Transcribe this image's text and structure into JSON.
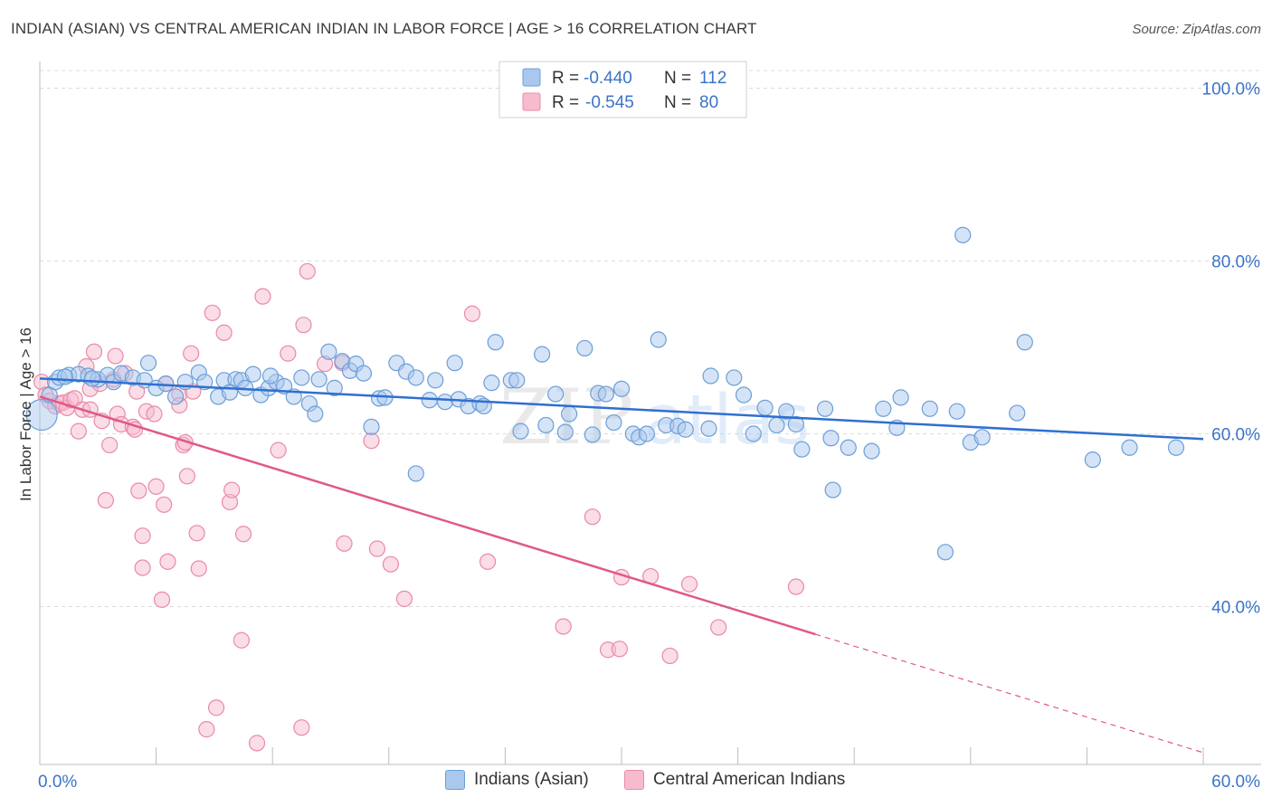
{
  "header": {
    "title": "INDIAN (ASIAN) VS CENTRAL AMERICAN INDIAN IN LABOR FORCE | AGE > 16 CORRELATION CHART",
    "source": "Source: ZipAtlas.com"
  },
  "watermark": {
    "zip": "ZIP",
    "atlas": "atlas"
  },
  "legend_top": [
    {
      "r_label": "R =",
      "r_value": "-0.440",
      "n_label": "N =",
      "n_value": "112"
    },
    {
      "r_label": "R =",
      "r_value": "-0.545",
      "n_label": "N =",
      "n_value": "80"
    }
  ],
  "legend_bottom": [
    {
      "label": "Indians (Asian)"
    },
    {
      "label": "Central American Indians"
    }
  ],
  "colors": {
    "blue_fill": "#a9c8ee",
    "blue_stroke": "#6b9fd8",
    "blue_line": "#2f6fd0",
    "pink_fill": "#f6bccd",
    "pink_stroke": "#e98aa8",
    "pink_line": "#e0588a",
    "axis_text": "#3b74c9",
    "grid": "#dcdcdc"
  },
  "chart_data": {
    "type": "scatter",
    "title": "INDIAN (ASIAN) VS CENTRAL AMERICAN INDIAN IN LABOR FORCE | AGE > 16 CORRELATION CHART",
    "xlabel": "",
    "ylabel": "In Labor Force | Age > 16",
    "xlim": [
      0,
      60
    ],
    "ylim": [
      20,
      104
    ],
    "x_tick_labels": [
      "0.0%",
      "60.0%"
    ],
    "y_ticks": [
      40,
      60,
      80,
      100
    ],
    "y_tick_labels": [
      "40.0%",
      "60.0%",
      "80.0%",
      "100.0%"
    ],
    "grid": true,
    "legend_position": "top-center",
    "series": [
      {
        "name": "Indians (Asian)",
        "r": -0.44,
        "n": 112,
        "trend": {
          "x0": 0,
          "y0": 66.4,
          "x1": 60,
          "y1": 59.4
        },
        "points": [
          [
            0.1,
            62.2
          ],
          [
            0.5,
            64.5
          ],
          [
            0.8,
            66.0
          ],
          [
            1.0,
            66.5
          ],
          [
            1.5,
            66.8
          ],
          [
            2.0,
            66.9
          ],
          [
            2.5,
            66.7
          ],
          [
            3.0,
            66.3
          ],
          [
            3.5,
            66.8
          ],
          [
            3.8,
            66.0
          ],
          [
            4.2,
            67.0
          ],
          [
            4.8,
            66.5
          ],
          [
            5.6,
            68.2
          ],
          [
            6.0,
            65.3
          ],
          [
            6.5,
            65.8
          ],
          [
            7.0,
            64.3
          ],
          [
            7.5,
            66.0
          ],
          [
            8.2,
            67.1
          ],
          [
            8.5,
            66.0
          ],
          [
            9.2,
            64.3
          ],
          [
            9.5,
            66.2
          ],
          [
            10.1,
            66.3
          ],
          [
            10.4,
            66.2
          ],
          [
            10.6,
            65.3
          ],
          [
            11.0,
            66.9
          ],
          [
            11.4,
            64.5
          ],
          [
            11.8,
            65.3
          ],
          [
            12.2,
            66.0
          ],
          [
            12.6,
            65.5
          ],
          [
            13.1,
            64.3
          ],
          [
            13.5,
            66.5
          ],
          [
            13.9,
            63.5
          ],
          [
            14.2,
            62.3
          ],
          [
            14.4,
            66.3
          ],
          [
            14.9,
            69.5
          ],
          [
            15.2,
            65.3
          ],
          [
            15.6,
            68.4
          ],
          [
            16.0,
            67.3
          ],
          [
            16.3,
            68.1
          ],
          [
            16.7,
            67.0
          ],
          [
            17.1,
            60.8
          ],
          [
            17.5,
            64.1
          ],
          [
            17.8,
            64.2
          ],
          [
            18.4,
            68.2
          ],
          [
            18.9,
            67.2
          ],
          [
            19.4,
            66.5
          ],
          [
            19.4,
            55.4
          ],
          [
            20.1,
            63.9
          ],
          [
            20.4,
            66.2
          ],
          [
            20.9,
            63.7
          ],
          [
            21.4,
            68.2
          ],
          [
            21.6,
            64.0
          ],
          [
            22.1,
            63.2
          ],
          [
            22.7,
            63.5
          ],
          [
            22.9,
            63.2
          ],
          [
            23.3,
            65.9
          ],
          [
            23.5,
            70.6
          ],
          [
            24.3,
            66.2
          ],
          [
            24.6,
            66.2
          ],
          [
            24.8,
            60.3
          ],
          [
            25.9,
            69.2
          ],
          [
            26.1,
            61.0
          ],
          [
            26.6,
            64.6
          ],
          [
            27.1,
            60.2
          ],
          [
            27.3,
            62.3
          ],
          [
            28.1,
            69.9
          ],
          [
            28.5,
            59.9
          ],
          [
            28.8,
            64.7
          ],
          [
            29.2,
            64.6
          ],
          [
            29.6,
            61.3
          ],
          [
            30.0,
            65.2
          ],
          [
            30.6,
            60.0
          ],
          [
            30.9,
            59.6
          ],
          [
            31.3,
            60.0
          ],
          [
            31.9,
            70.9
          ],
          [
            32.3,
            61.0
          ],
          [
            32.9,
            60.9
          ],
          [
            33.3,
            60.5
          ],
          [
            34.5,
            60.6
          ],
          [
            34.6,
            66.7
          ],
          [
            35.8,
            66.5
          ],
          [
            36.3,
            64.5
          ],
          [
            36.8,
            60.0
          ],
          [
            37.4,
            63.0
          ],
          [
            38.0,
            61.0
          ],
          [
            38.5,
            62.6
          ],
          [
            39.0,
            61.1
          ],
          [
            39.3,
            58.2
          ],
          [
            40.5,
            62.9
          ],
          [
            40.8,
            59.5
          ],
          [
            40.9,
            53.5
          ],
          [
            41.7,
            58.4
          ],
          [
            42.9,
            58.0
          ],
          [
            43.5,
            62.9
          ],
          [
            44.2,
            60.7
          ],
          [
            44.4,
            64.2
          ],
          [
            45.9,
            62.9
          ],
          [
            46.7,
            46.3
          ],
          [
            47.3,
            62.6
          ],
          [
            47.6,
            83.0
          ],
          [
            48.0,
            59.0
          ],
          [
            48.6,
            59.6
          ],
          [
            50.4,
            62.4
          ],
          [
            50.8,
            70.6
          ],
          [
            54.3,
            57.0
          ],
          [
            56.2,
            58.4
          ],
          [
            58.6,
            58.4
          ],
          [
            1.3,
            66.6
          ],
          [
            2.7,
            66.4
          ],
          [
            9.8,
            64.8
          ],
          [
            11.9,
            66.7
          ],
          [
            5.4,
            66.2
          ]
        ]
      },
      {
        "name": "Central American Indians",
        "r": -0.545,
        "n": 80,
        "trend": {
          "x0": 0,
          "y0": 64.3,
          "x1": 40.0,
          "y1": 36.8,
          "dash_x1": 60,
          "dash_y1": 23.1
        },
        "points": [
          [
            0.1,
            66.0
          ],
          [
            0.3,
            64.5
          ],
          [
            0.5,
            63.8
          ],
          [
            0.8,
            63.2
          ],
          [
            1.0,
            63.5
          ],
          [
            1.2,
            63.6
          ],
          [
            1.4,
            63.0
          ],
          [
            1.6,
            63.9
          ],
          [
            1.8,
            64.1
          ],
          [
            2.0,
            60.3
          ],
          [
            2.2,
            62.8
          ],
          [
            2.4,
            67.8
          ],
          [
            2.6,
            65.2
          ],
          [
            2.6,
            62.8
          ],
          [
            2.8,
            69.5
          ],
          [
            3.1,
            65.8
          ],
          [
            3.2,
            61.5
          ],
          [
            3.4,
            52.3
          ],
          [
            3.6,
            58.7
          ],
          [
            3.8,
            66.3
          ],
          [
            3.9,
            69.0
          ],
          [
            4.0,
            62.3
          ],
          [
            4.2,
            61.1
          ],
          [
            4.4,
            67.0
          ],
          [
            4.8,
            60.8
          ],
          [
            4.9,
            60.5
          ],
          [
            5.0,
            64.9
          ],
          [
            5.1,
            53.4
          ],
          [
            5.3,
            44.5
          ],
          [
            5.3,
            48.2
          ],
          [
            5.5,
            62.6
          ],
          [
            5.9,
            62.3
          ],
          [
            6.0,
            53.9
          ],
          [
            6.3,
            40.8
          ],
          [
            6.4,
            51.8
          ],
          [
            6.5,
            65.8
          ],
          [
            6.6,
            45.2
          ],
          [
            7.2,
            64.6
          ],
          [
            7.2,
            63.3
          ],
          [
            7.4,
            58.7
          ],
          [
            7.5,
            59.0
          ],
          [
            7.6,
            55.1
          ],
          [
            7.8,
            69.3
          ],
          [
            7.9,
            64.9
          ],
          [
            8.1,
            48.5
          ],
          [
            8.2,
            44.4
          ],
          [
            8.9,
            74.0
          ],
          [
            9.1,
            28.3
          ],
          [
            9.5,
            71.7
          ],
          [
            9.8,
            52.1
          ],
          [
            9.9,
            53.5
          ],
          [
            10.4,
            36.1
          ],
          [
            10.5,
            48.4
          ],
          [
            11.2,
            24.2
          ],
          [
            11.5,
            75.9
          ],
          [
            12.3,
            58.1
          ],
          [
            12.8,
            69.3
          ],
          [
            13.6,
            72.6
          ],
          [
            13.8,
            78.8
          ],
          [
            14.7,
            68.1
          ],
          [
            15.6,
            68.2
          ],
          [
            15.7,
            47.3
          ],
          [
            17.1,
            59.2
          ],
          [
            17.4,
            46.7
          ],
          [
            18.1,
            44.9
          ],
          [
            18.8,
            40.9
          ],
          [
            22.3,
            73.9
          ],
          [
            23.1,
            45.2
          ],
          [
            27.0,
            37.7
          ],
          [
            28.5,
            50.4
          ],
          [
            29.3,
            35.0
          ],
          [
            29.9,
            35.1
          ],
          [
            30.0,
            43.4
          ],
          [
            31.5,
            43.5
          ],
          [
            32.5,
            34.3
          ],
          [
            33.5,
            42.6
          ],
          [
            35.0,
            37.6
          ],
          [
            39.0,
            42.3
          ],
          [
            13.5,
            26.0
          ],
          [
            8.6,
            25.8
          ]
        ]
      }
    ]
  }
}
